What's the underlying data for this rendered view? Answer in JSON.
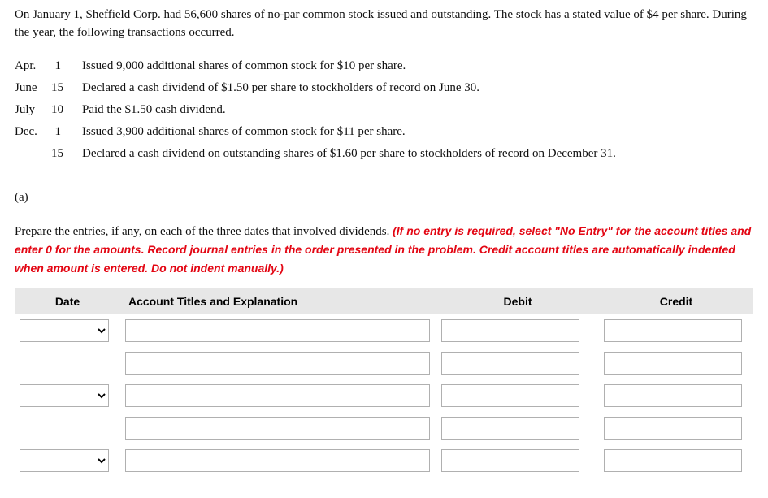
{
  "intro": "On January 1, Sheffield Corp. had 56,600 shares of no-par common stock issued and outstanding. The stock has a stated value of $4 per share. During the year, the following transactions occurred.",
  "transactions": [
    {
      "month": "Apr.",
      "day": "1",
      "desc": "Issued 9,000 additional shares of common stock for $10 per share."
    },
    {
      "month": "June",
      "day": "15",
      "desc": "Declared a cash dividend of $1.50 per share to stockholders of record on June 30."
    },
    {
      "month": "July",
      "day": "10",
      "desc": "Paid the $1.50 cash dividend."
    },
    {
      "month": "Dec.",
      "day": "1",
      "desc": "Issued 3,900 additional shares of common stock for $11 per share."
    },
    {
      "month": "",
      "day": "15",
      "desc": "Declared a cash dividend on outstanding shares of $1.60 per share to stockholders of record on December 31."
    }
  ],
  "part_label": "(a)",
  "instructions_lead": "Prepare the entries, if any, on each of the three dates that involved dividends. ",
  "instructions_red": "(If no entry is required, select \"No Entry\" for the account titles and enter 0 for the amounts. Record journal entries in the order presented in the problem. Credit account titles are automatically indented when amount is entered. Do not indent manually.)",
  "headers": {
    "date": "Date",
    "account": "Account Titles and Explanation",
    "debit": "Debit",
    "credit": "Credit"
  },
  "entry_blocks": 3,
  "lines_per_block_first": 2,
  "visible_rows": [
    {
      "show_date": true
    },
    {
      "show_date": false
    },
    {
      "show_date": true
    },
    {
      "show_date": false
    },
    {
      "show_date": true
    }
  ]
}
